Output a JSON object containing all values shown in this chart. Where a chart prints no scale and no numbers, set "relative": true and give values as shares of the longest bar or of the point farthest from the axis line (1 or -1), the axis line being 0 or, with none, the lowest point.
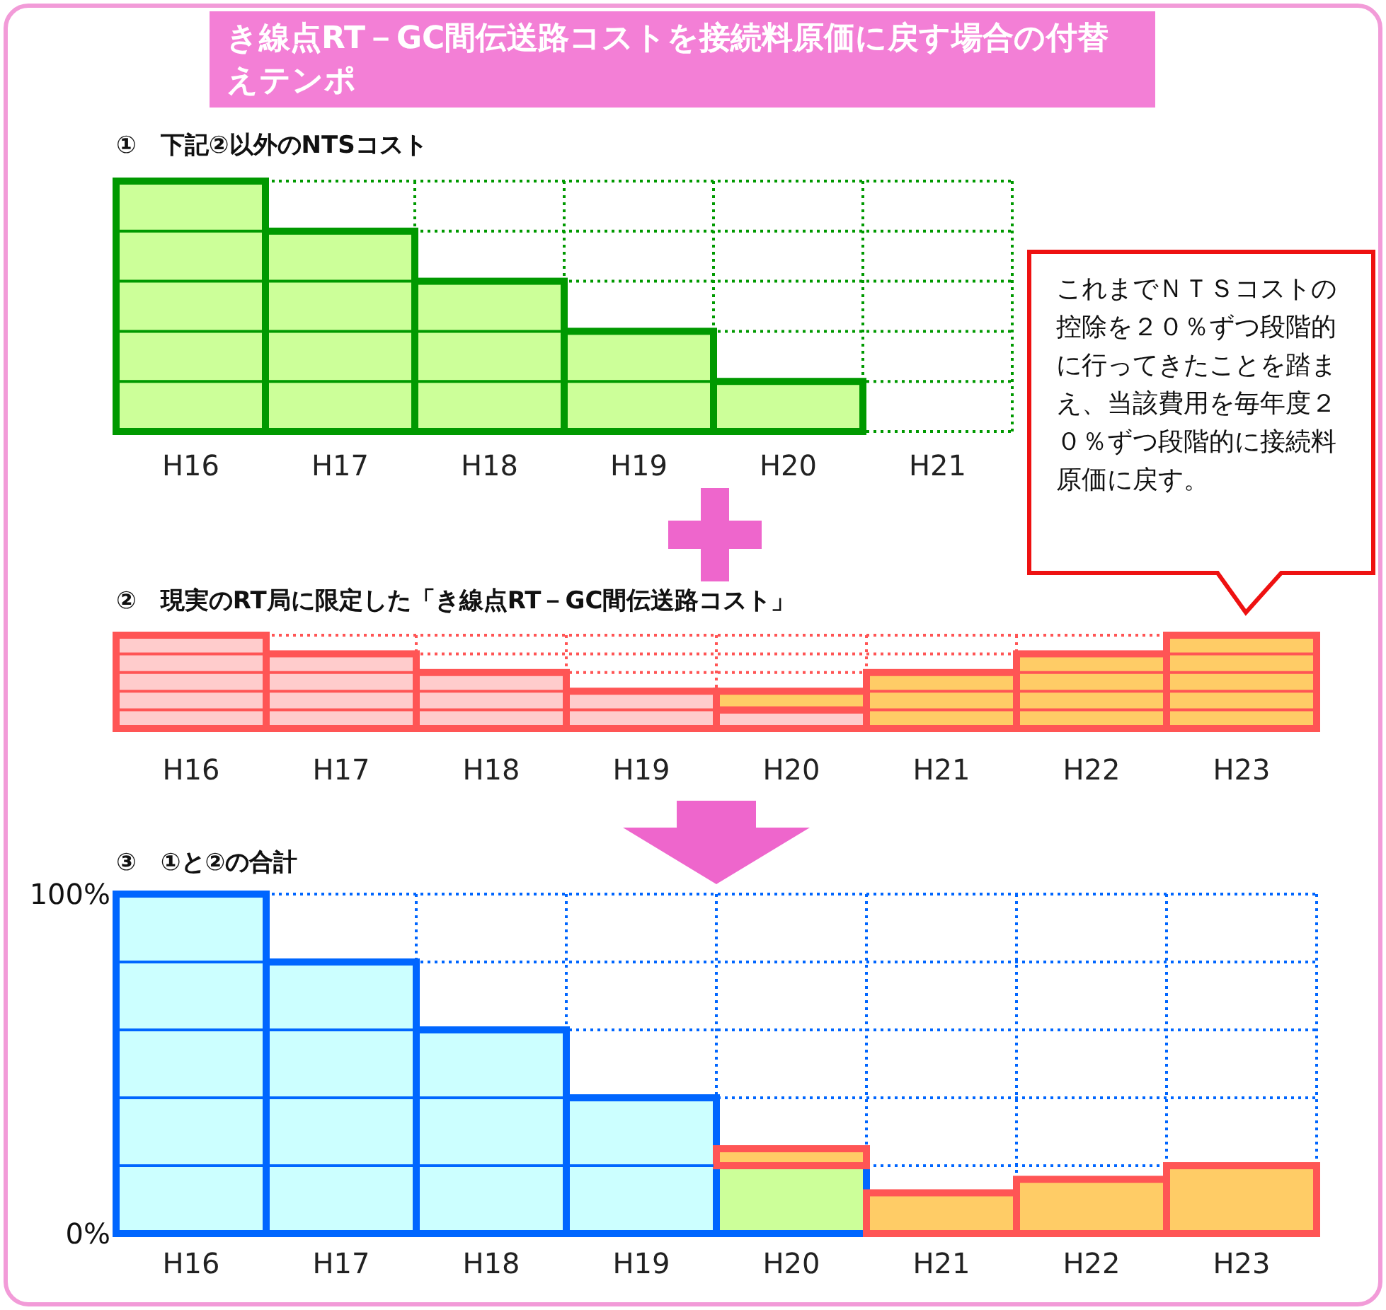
{
  "chart_data": [
    {
      "type": "bar",
      "title": "き線点RT－GC間伝送路コストを接続料原価に戻す場合の付替えテンポ",
      "subtitle": "①　下記②以外のNTSコスト",
      "relative": true,
      "grid": true,
      "color": "#ccff99",
      "categories": [
        "H16",
        "H17",
        "H18",
        "H19",
        "H20",
        "H21"
      ],
      "values": [
        1,
        0.8,
        0.6,
        0.4,
        0.2,
        0
      ]
    },
    {
      "type": "bar",
      "title": "②　現実のRT局に限定した「き線点RT－GC間伝送路コスト」",
      "relative": true,
      "grid": true,
      "stacked": true,
      "categories": [
        "H16",
        "H17",
        "H18",
        "H19",
        "H20",
        "H21",
        "H22",
        "H23"
      ],
      "annotations": [
        "これまでＮＴＳコストの控除を２０％ずつ段階的に行ってきたことを踏まえ、当該費用を毎年度２０％ずつ段階的に接続料原価に戻す。"
      ],
      "series": [
        {
          "color": "#ffcccc",
          "values": [
            1,
            0.8,
            0.6,
            0.4,
            0.2,
            0,
            0,
            0
          ]
        },
        {
          "color": "#ffcc66",
          "values": [
            0,
            0,
            0,
            0,
            0.2,
            0.6,
            0.8,
            1
          ]
        }
      ]
    },
    {
      "type": "bar",
      "title": "③　①と②の合計",
      "grid": true,
      "stacked": true,
      "ylim": [
        0,
        100
      ],
      "yticks": [
        {
          "value": 0,
          "label": "0%"
        },
        {
          "value": 100,
          "label": "100%"
        }
      ],
      "categories": [
        "H16",
        "H17",
        "H18",
        "H19",
        "H20",
        "H21",
        "H22",
        "H23"
      ],
      "series": [
        {
          "colors": [
            "#ccffff",
            "#ccffff",
            "#ccffff",
            "#ccffff",
            "#ccff99",
            "#ccffff",
            "#ccffff",
            "#ccffff"
          ],
          "values": [
            100,
            80,
            60,
            40,
            20,
            0,
            0,
            0
          ]
        },
        {
          "color": "#ffcc66",
          "values": [
            0,
            0,
            0,
            0,
            5,
            12,
            16,
            20
          ]
        }
      ]
    }
  ]
}
